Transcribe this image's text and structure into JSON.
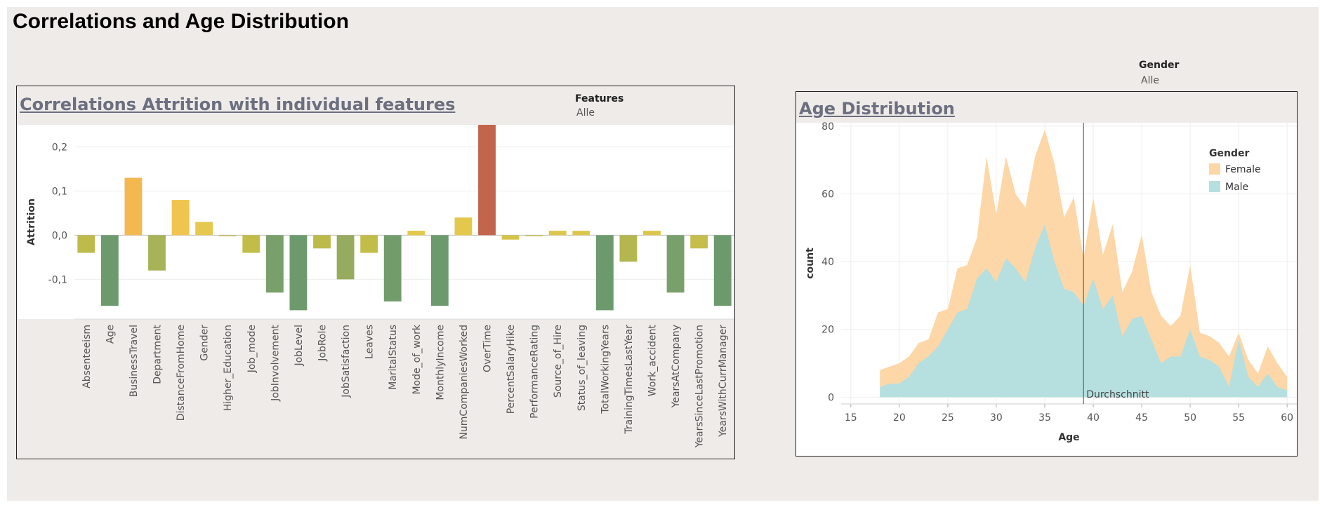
{
  "dashboard": {
    "title": "Correlations and Age Distribution"
  },
  "left_panel": {
    "title": "Correlations Attrition with individual features",
    "filter": {
      "label": "Features",
      "value": "Alle"
    }
  },
  "right_panel": {
    "title": "Age Distribution",
    "filter": {
      "label": "Gender",
      "value": "Alle"
    },
    "mean_label": "Durchschnitt"
  },
  "chart_data": [
    {
      "type": "bar",
      "title": "Correlations Attrition with individual features",
      "ylabel": "Attrition",
      "xlabel": "",
      "ylim": [
        -0.19,
        0.25
      ],
      "yticks": [
        0.2,
        0.1,
        0.0,
        -0.1
      ],
      "ytick_labels": [
        "0,2",
        "0,1",
        "0,0",
        "-0,1"
      ],
      "grid": true,
      "categories": [
        "Absenteeism",
        "Age",
        "BusinessTravel",
        "Department",
        "DistanceFromHome",
        "Gender",
        "Higher_Education",
        "Job_mode",
        "JobInvolvement",
        "JobLevel",
        "JobRole",
        "JobSatisfaction",
        "Leaves",
        "MaritalStatus",
        "Mode_of_work",
        "MonthlyIncome",
        "NumCompaniesWorked",
        "OverTime",
        "PercentSalaryHike",
        "PerformanceRating",
        "Source_of_Hire",
        "Status_of_leaving",
        "TotalWorkingYears",
        "TrainingTimesLastYear",
        "Work_accident",
        "YearsAtCompany",
        "YearsSinceLastPromotion",
        "YearsWithCurrManager"
      ],
      "values": [
        -0.04,
        -0.16,
        0.13,
        -0.08,
        0.08,
        0.03,
        -0.002,
        -0.04,
        -0.13,
        -0.17,
        -0.03,
        -0.1,
        -0.04,
        -0.15,
        0.01,
        -0.16,
        0.04,
        0.25,
        -0.01,
        -0.002,
        0.01,
        0.01,
        -0.17,
        -0.06,
        0.01,
        -0.13,
        -0.03,
        -0.16
      ],
      "colors": [
        "#bfbb4a",
        "#6c9a6d",
        "#f3b850",
        "#a8b257",
        "#f0c44e",
        "#e6c84e",
        "#c9c04a",
        "#c2bd48",
        "#79a06a",
        "#6c9a6d",
        "#bcbb4a",
        "#96ab5d",
        "#c2bd48",
        "#729d6b",
        "#e2c94c",
        "#6c9a6d",
        "#e4c84c",
        "#c2654c",
        "#d6c44a",
        "#cbc048",
        "#dcc64b",
        "#dcc64b",
        "#6c9a6d",
        "#b4b64f",
        "#dcc64b",
        "#79a06a",
        "#c6be4a",
        "#6c9a6d"
      ]
    },
    {
      "type": "area",
      "title": "Age Distribution",
      "xlabel": "Age",
      "ylabel": "count",
      "xlim": [
        14,
        61
      ],
      "ylim": [
        -2,
        81
      ],
      "xticks": [
        15,
        20,
        25,
        30,
        35,
        40,
        45,
        50,
        55,
        60
      ],
      "yticks": [
        0,
        20,
        40,
        60,
        80
      ],
      "grid": true,
      "stacked": true,
      "mean_age": 39,
      "legend": {
        "title": "Gender",
        "position": "top-right"
      },
      "x": [
        18,
        19,
        20,
        21,
        22,
        23,
        24,
        25,
        26,
        27,
        28,
        29,
        30,
        31,
        32,
        33,
        34,
        35,
        36,
        37,
        38,
        39,
        40,
        41,
        42,
        43,
        44,
        45,
        46,
        47,
        48,
        49,
        50,
        51,
        52,
        53,
        54,
        55,
        56,
        57,
        58,
        59,
        60
      ],
      "series": [
        {
          "name": "Female",
          "color": "#fdd7a8",
          "values": [
            5,
            5,
            6,
            6,
            6,
            5,
            10,
            6,
            13,
            13,
            12,
            33,
            20,
            30,
            22,
            22,
            27,
            28,
            29,
            21,
            28,
            14,
            24,
            16,
            21,
            13,
            14,
            24,
            14,
            14,
            9,
            12,
            19,
            7,
            7,
            7,
            9,
            2,
            5,
            4,
            8,
            7,
            4
          ]
        },
        {
          "name": "Male",
          "color": "#b6dfdf",
          "values": [
            3,
            4,
            4,
            6,
            10,
            12,
            15,
            20,
            25,
            26,
            35,
            38,
            34,
            41,
            38,
            34,
            44,
            51,
            40,
            32,
            31,
            27,
            35,
            26,
            30,
            18,
            23,
            24,
            17,
            10,
            12,
            12,
            20,
            12,
            11,
            9,
            3,
            17,
            6,
            3,
            7,
            3,
            2
          ]
        }
      ]
    }
  ]
}
